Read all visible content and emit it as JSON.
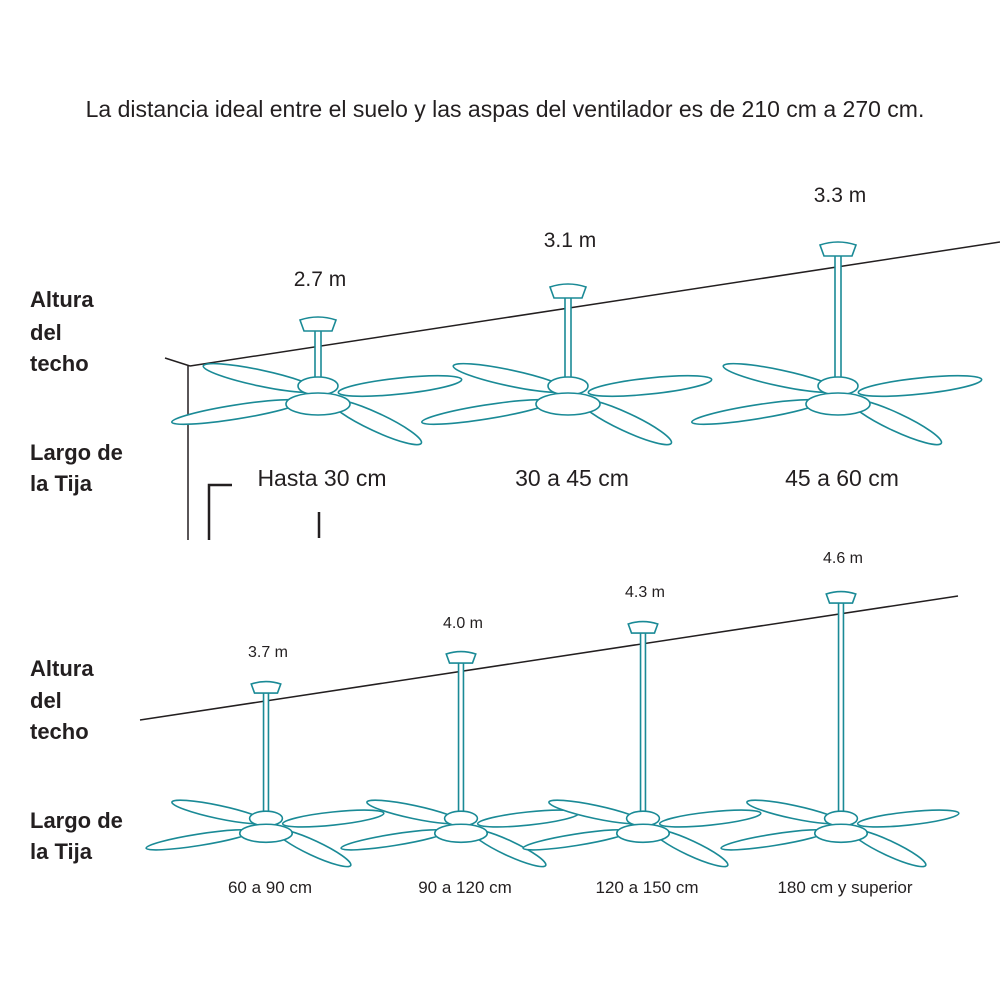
{
  "intro": "La distancia ideal entre el suelo y las aspas del ventilador es de 210 cm a 270 cm.",
  "sections": [
    {
      "height_label": [
        "Altura",
        "del",
        "techo"
      ],
      "rod_label": [
        "Largo de",
        "la Tija"
      ],
      "fans": [
        {
          "height": "2.7 m",
          "rod": "Hasta 30 cm"
        },
        {
          "height": "3.1 m",
          "rod": "30 a 45 cm"
        },
        {
          "height": "3.3 m",
          "rod": "45 a 60 cm"
        }
      ]
    },
    {
      "height_label": [
        "Altura",
        "del",
        "techo"
      ],
      "rod_label": [
        "Largo de",
        "la Tija"
      ],
      "fans": [
        {
          "height": "3.7 m",
          "rod": "60 a 90 cm"
        },
        {
          "height": "4.0 m",
          "rod": "90 a 120 cm"
        },
        {
          "height": "4.3 m",
          "rod": "120 a 150 cm"
        },
        {
          "height": "4.6 m",
          "rod": "180 cm y superior"
        }
      ]
    }
  ]
}
